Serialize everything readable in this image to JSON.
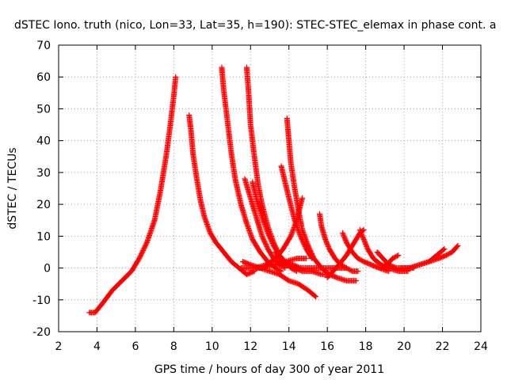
{
  "chart_data": {
    "type": "scatter",
    "title": "dSTEC Iono. truth (nico, Lon=33, Lat=35, h=190): STEC-STEC_elemax in phase cont. a",
    "xlabel": "GPS time / hours of day 300 of year 2011",
    "ylabel": "dSTEC  / TECUs",
    "xlim": [
      2,
      24
    ],
    "ylim": [
      -20,
      70
    ],
    "xticks": [
      "2",
      "4",
      "6",
      "8",
      "10",
      "12",
      "14",
      "16",
      "18",
      "20",
      "22",
      "24"
    ],
    "yticks": [
      "-20",
      "-10",
      "0",
      "10",
      "20",
      "30",
      "40",
      "50",
      "60",
      "70"
    ],
    "grid": true,
    "marker": "plus",
    "color": "#ff0000",
    "series": [
      {
        "x": [
          3.6,
          3.9,
          4.3,
          4.8,
          5.3,
          5.8,
          6.2,
          6.6,
          7.0,
          7.3,
          7.6,
          7.8,
          8.0,
          8.1
        ],
        "y": [
          -14,
          -14,
          -11,
          -7,
          -4,
          -1,
          3,
          8,
          15,
          24,
          35,
          44,
          54,
          60
        ]
      },
      {
        "x": [
          8.8,
          8.9,
          9.0,
          9.2,
          9.4,
          9.6,
          9.9,
          10.2,
          10.6,
          11.0,
          11.4,
          11.8,
          12.2
        ],
        "y": [
          48,
          43,
          36,
          28,
          21,
          16,
          11,
          8,
          5,
          2,
          0,
          -2,
          -1
        ]
      },
      {
        "x": [
          10.5,
          10.6,
          10.8,
          11.0,
          11.2,
          11.5,
          11.8,
          12.1,
          12.5,
          12.9,
          13.3,
          13.6
        ],
        "y": [
          63,
          56,
          46,
          36,
          28,
          20,
          14,
          9,
          5,
          2,
          0,
          -1
        ]
      },
      {
        "x": [
          11.8,
          11.9,
          12.0,
          12.2,
          12.4,
          12.6,
          12.9,
          13.2,
          13.5,
          13.8,
          14.1,
          14.4
        ],
        "y": [
          63,
          55,
          45,
          35,
          26,
          20,
          13,
          8,
          4,
          2,
          0,
          -1
        ]
      },
      {
        "x": [
          11.7,
          12.0,
          12.3,
          12.6,
          12.9,
          13.2,
          13.5,
          13.8
        ],
        "y": [
          28,
          22,
          16,
          10,
          6,
          3,
          1,
          0
        ]
      },
      {
        "x": [
          12.1,
          12.3,
          12.6,
          12.9,
          13.2,
          13.5,
          13.8,
          14.2,
          14.6,
          15.0
        ],
        "y": [
          27,
          22,
          16,
          11,
          7,
          4,
          2,
          1,
          0,
          0
        ]
      },
      {
        "x": [
          13.9,
          14.0,
          14.1,
          14.3,
          14.5,
          14.7,
          15.0,
          15.3,
          15.7,
          16.1,
          16.5,
          17.0,
          17.5
        ],
        "y": [
          47,
          40,
          33,
          25,
          18,
          12,
          7,
          3,
          0,
          -2,
          -3,
          -4,
          -4
        ]
      },
      {
        "x": [
          13.6,
          13.8,
          14.0,
          14.3,
          14.6,
          14.9,
          15.2
        ],
        "y": [
          32,
          27,
          22,
          15,
          10,
          6,
          3
        ]
      },
      {
        "x": [
          12.3,
          12.8,
          13.3,
          13.7,
          14.1,
          14.4,
          14.7
        ],
        "y": [
          0,
          1,
          3,
          6,
          10,
          15,
          22
        ]
      },
      {
        "x": [
          11.5,
          12.0,
          12.6,
          13.2,
          13.8,
          14.4,
          14.9
        ],
        "y": [
          0,
          0,
          0,
          1,
          2,
          3,
          3
        ]
      },
      {
        "x": [
          11.6,
          12.0,
          12.5,
          13.0,
          13.5,
          14.0,
          14.5,
          15.0,
          15.4
        ],
        "y": [
          2,
          1,
          0,
          -1,
          -2,
          -4,
          -5,
          -7,
          -9
        ]
      },
      {
        "x": [
          13.3,
          13.6,
          13.9,
          14.3,
          14.7,
          15.2,
          15.7,
          16.1
        ],
        "y": [
          5,
          2,
          1,
          0,
          -1,
          -1,
          -2,
          -2
        ]
      },
      {
        "x": [
          15.6,
          15.7,
          15.9,
          16.1,
          16.4,
          16.7,
          17.0,
          17.3,
          17.6
        ],
        "y": [
          17,
          13,
          9,
          6,
          3,
          1,
          0,
          -1,
          -1
        ]
      },
      {
        "x": [
          16.8,
          17.0,
          17.3,
          17.6,
          17.9,
          18.3,
          18.7,
          19.2
        ],
        "y": [
          11,
          8,
          5,
          3,
          2,
          1,
          0,
          -1
        ]
      },
      {
        "x": [
          16.0,
          16.3,
          16.6,
          17.0,
          17.4,
          17.7,
          17.9
        ],
        "y": [
          -3,
          -1,
          1,
          4,
          8,
          11,
          12
        ]
      },
      {
        "x": [
          17.7,
          17.9,
          18.1,
          18.4,
          18.8,
          19.2,
          19.7,
          20.2
        ],
        "y": [
          12,
          9,
          6,
          3,
          1,
          0,
          -1,
          -1
        ]
      },
      {
        "x": [
          18.6,
          18.9,
          19.2,
          19.6,
          20.0,
          20.5
        ],
        "y": [
          5,
          3,
          1,
          0,
          0,
          0
        ]
      },
      {
        "x": [
          18.8,
          19.1,
          19.4,
          19.7
        ],
        "y": [
          0,
          1,
          3,
          4
        ]
      },
      {
        "x": [
          19.8,
          20.3,
          20.8,
          21.3,
          21.8,
          22.2,
          22.5,
          22.8
        ],
        "y": [
          0,
          0,
          1,
          2,
          3,
          4,
          5,
          7
        ]
      },
      {
        "x": [
          20.3,
          20.8,
          21.3,
          21.7,
          22.1
        ],
        "y": [
          0,
          1,
          2,
          4,
          6
        ]
      },
      {
        "x": [
          15.0,
          15.5,
          16.0,
          16.5,
          17.0
        ],
        "y": [
          0,
          0,
          0,
          0,
          0
        ]
      }
    ]
  }
}
